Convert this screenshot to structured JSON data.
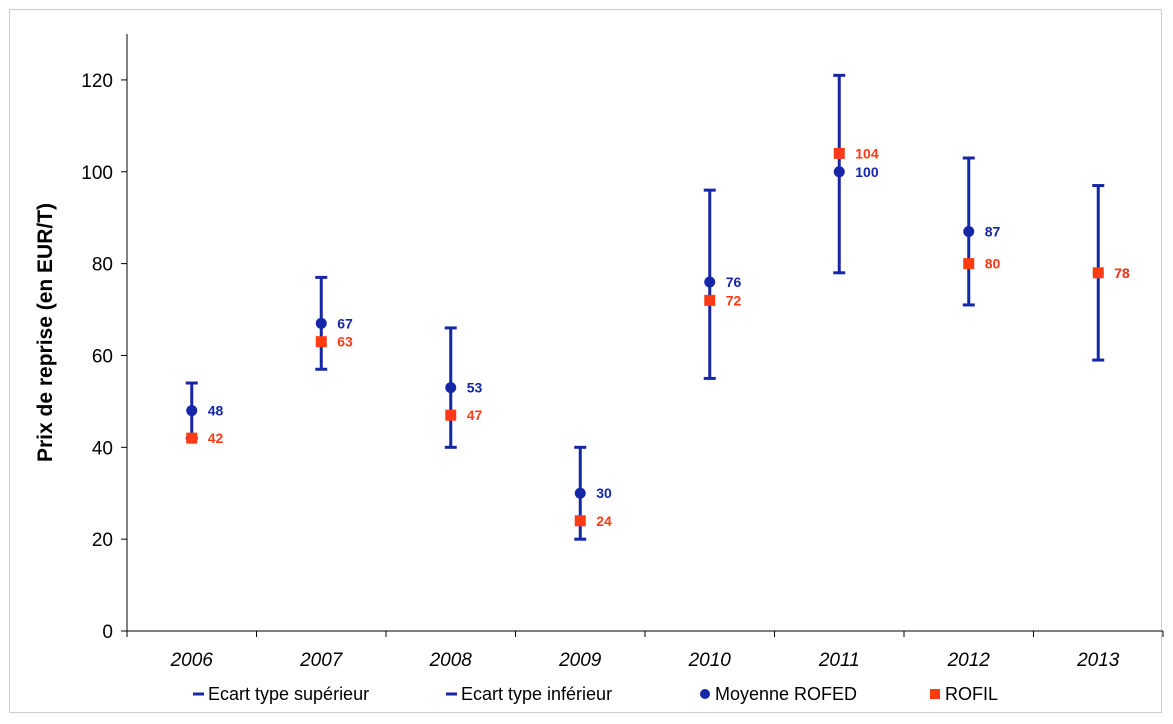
{
  "chart_data": {
    "type": "scatter",
    "title": "",
    "xlabel": "",
    "ylabel": "Prix de reprise (en EUR/T)",
    "ylim": [
      0,
      130
    ],
    "yticks": [
      "0",
      "20",
      "40",
      "60",
      "80",
      "100",
      "120"
    ],
    "categories": [
      "2006",
      "2007",
      "2008",
      "2009",
      "2010",
      "2011",
      "2012",
      "2013"
    ],
    "grid": false,
    "legend_position": "bottom",
    "series": [
      {
        "name": "Ecart type supérieur",
        "values": [
          54,
          77,
          66,
          40,
          96,
          121,
          103,
          97
        ],
        "color": "#1526a6"
      },
      {
        "name": "Ecart type inférieur",
        "values": [
          42,
          57,
          40,
          20,
          55,
          78,
          71,
          59
        ],
        "color": "#1526a6"
      },
      {
        "name": "Moyenne ROFED",
        "values": [
          48,
          67,
          53,
          30,
          76,
          100,
          87,
          78
        ],
        "labels": [
          "48",
          "67",
          "53",
          "30",
          "76",
          "100",
          "87",
          "78"
        ],
        "color": "#1526a6"
      },
      {
        "name": "ROFIL",
        "values": [
          42,
          63,
          47,
          24,
          72,
          104,
          80,
          78
        ],
        "labels": [
          "42",
          "63",
          "47",
          "24",
          "72",
          "104",
          "80",
          "78"
        ],
        "color": "#ff3a14"
      }
    ]
  }
}
